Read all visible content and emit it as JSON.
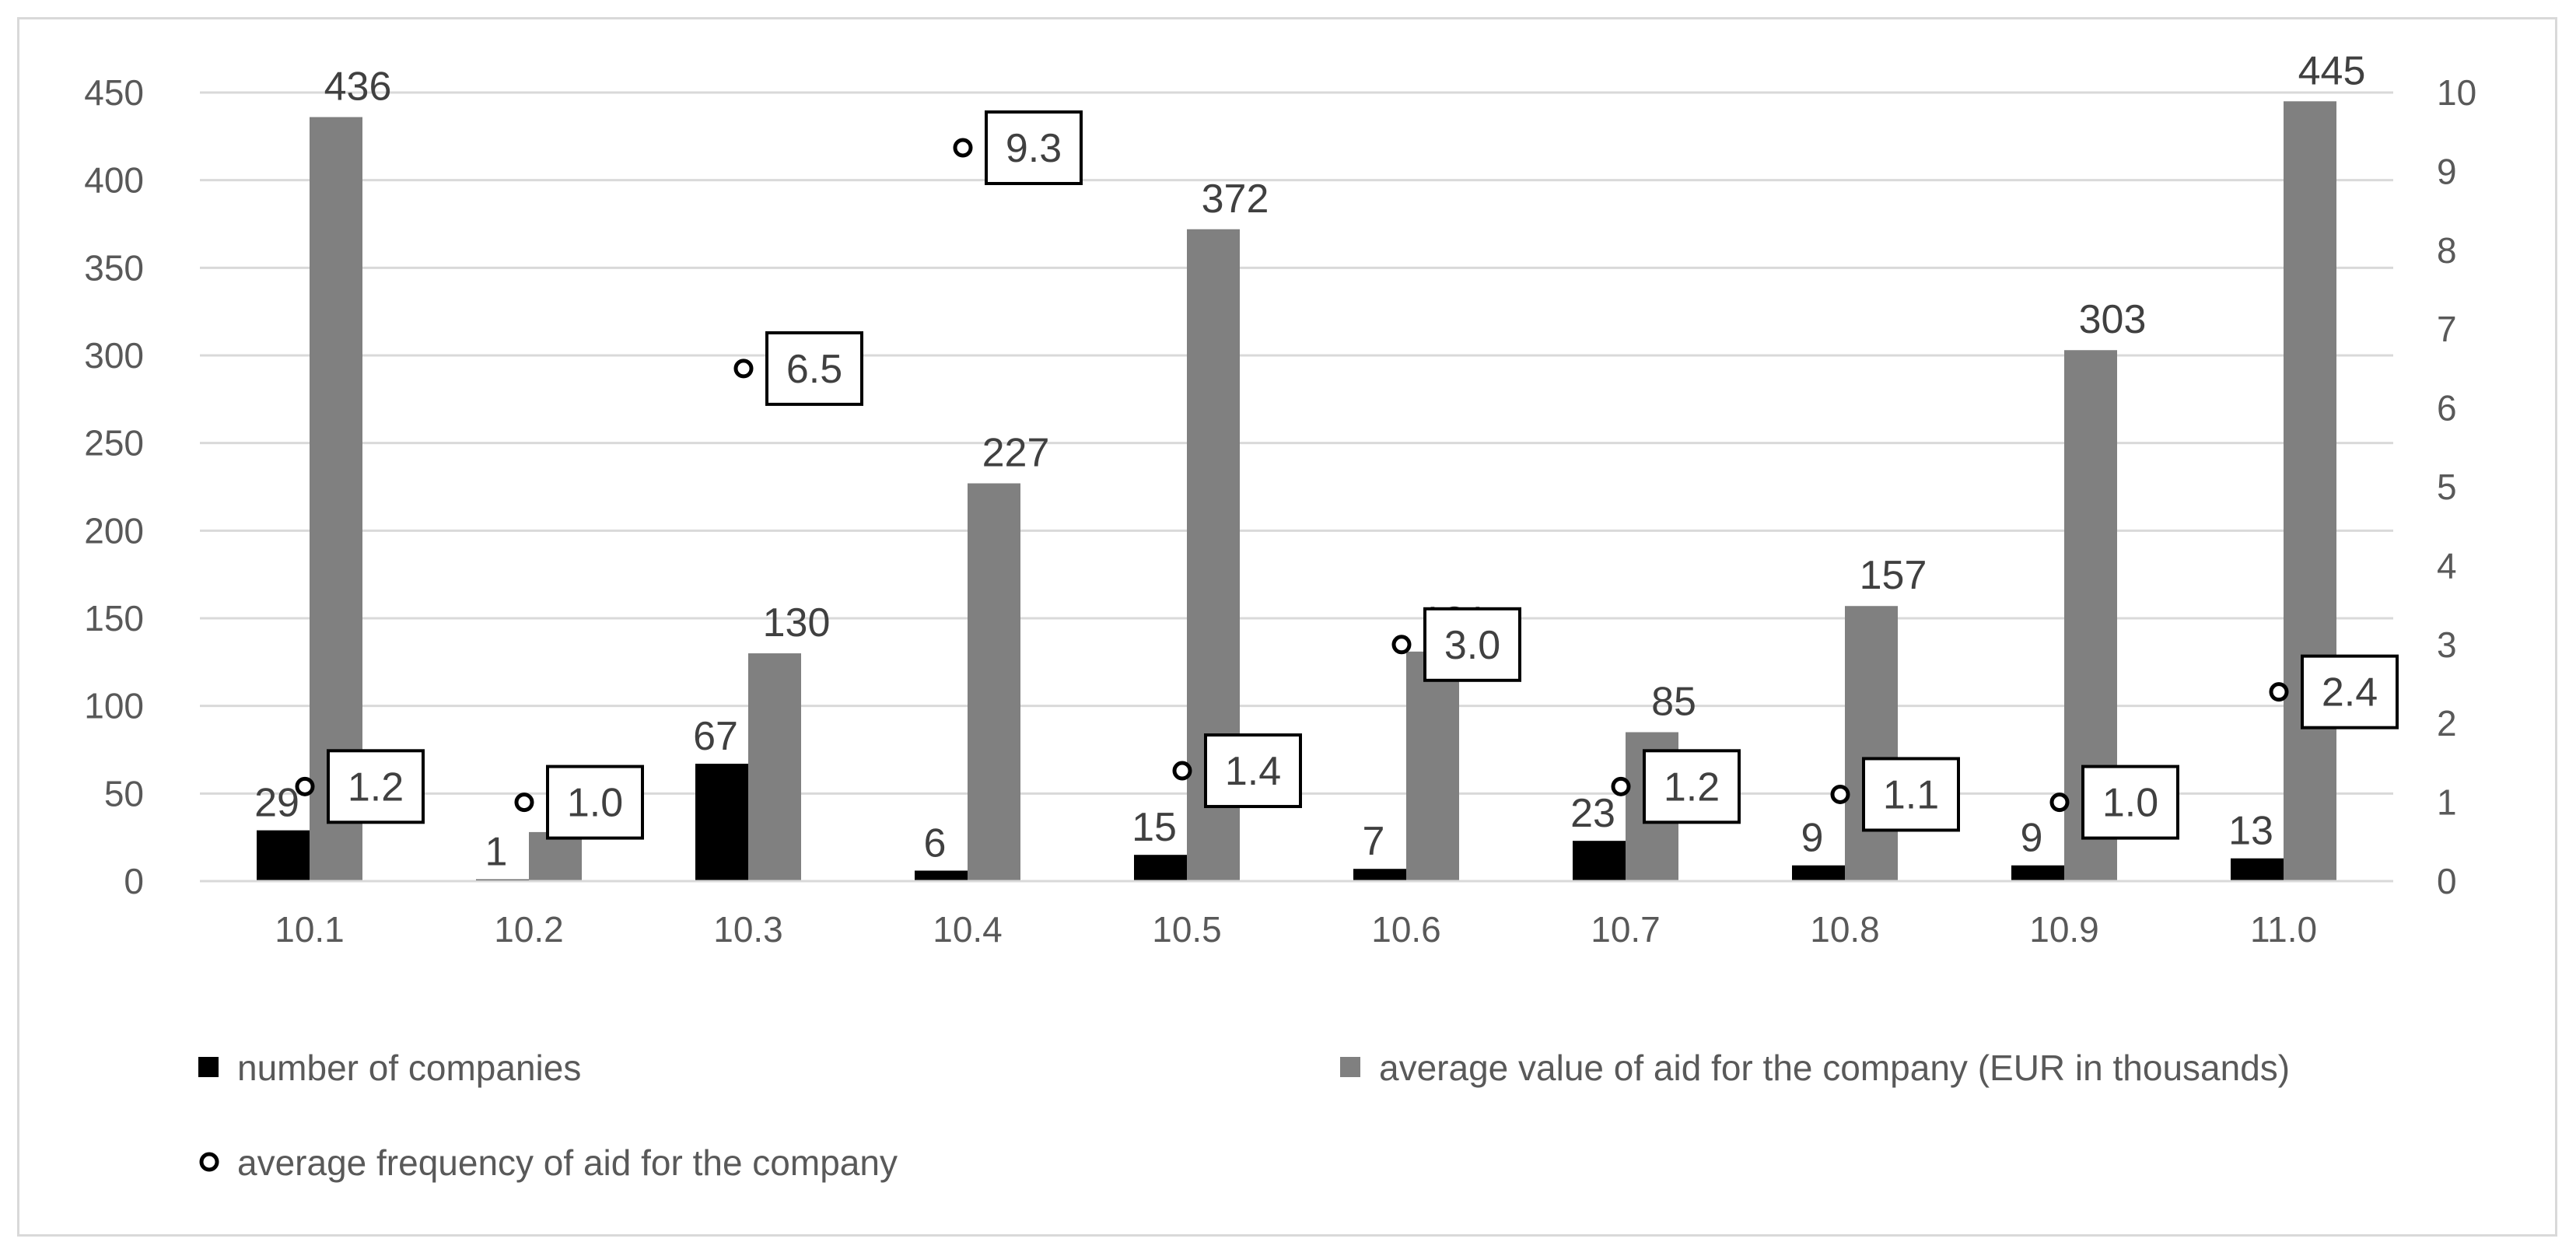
{
  "chart_data": {
    "type": "bar",
    "categories": [
      "10.1",
      "10.2",
      "10.3",
      "10.4",
      "10.5",
      "10.6",
      "10.7",
      "10.8",
      "10.9",
      "11.0"
    ],
    "series": [
      {
        "name": "number of companies",
        "kind": "bar",
        "axis": "left",
        "color": "#000000",
        "values": [
          29,
          1,
          67,
          6,
          15,
          7,
          23,
          9,
          9,
          13
        ],
        "labels": [
          "29",
          "1",
          "67",
          "6",
          "15",
          "7",
          "23",
          "9",
          "9",
          "13"
        ]
      },
      {
        "name": "average value of aid for the company (EUR in thousands)",
        "kind": "bar",
        "axis": "left",
        "color": "#808080",
        "values": [
          436,
          28,
          130,
          227,
          372,
          131,
          85,
          157,
          303,
          445
        ],
        "labels": [
          "436",
          "28",
          "130",
          "227",
          "372",
          "131",
          "85",
          "157",
          "303",
          "445"
        ]
      },
      {
        "name": "average frequency of aid for the company",
        "kind": "point",
        "axis": "right",
        "color": "#000000",
        "values": [
          1.2,
          1.0,
          6.5,
          9.3,
          1.4,
          3.0,
          1.2,
          1.1,
          1.0,
          2.4
        ],
        "labels": [
          "1.2",
          "1.0",
          "6.5",
          "9.3",
          "1.4",
          "3.0",
          "1.2",
          "1.1",
          "1.0",
          "2.4"
        ]
      }
    ],
    "y_left": {
      "min": 0,
      "max": 450,
      "step": 50,
      "ticks": [
        "0",
        "50",
        "100",
        "150",
        "200",
        "250",
        "300",
        "350",
        "400",
        "450"
      ]
    },
    "y_right": {
      "min": 0,
      "max": 10,
      "step": 1,
      "ticks": [
        "0",
        "1",
        "2",
        "3",
        "4",
        "5",
        "6",
        "7",
        "8",
        "9",
        "10"
      ]
    },
    "grid": true,
    "legend_position": "bottom"
  }
}
